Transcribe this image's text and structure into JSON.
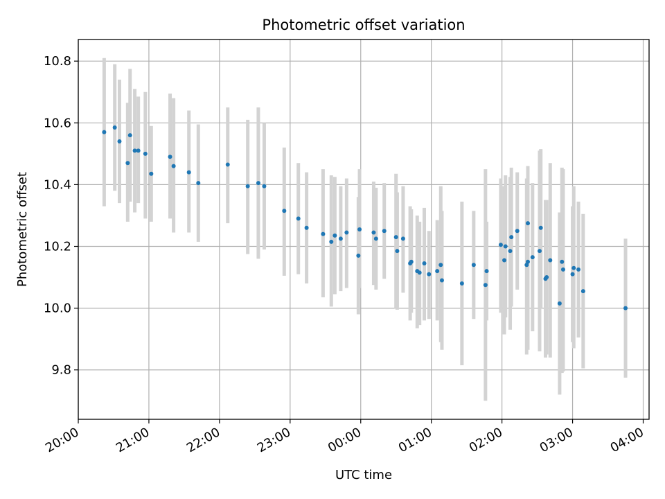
{
  "chart_data": {
    "type": "scatter",
    "title": "Photometric offset variation",
    "xlabel": "UTC time",
    "ylabel": "Photometric offset",
    "xlim": [
      "20:00",
      "04:05"
    ],
    "ylim": [
      9.64,
      10.87
    ],
    "x_ticks": [
      "20:00",
      "21:00",
      "22:00",
      "23:00",
      "00:00",
      "01:00",
      "02:00",
      "03:00",
      "04:00"
    ],
    "y_ticks": [
      "9.8",
      "10.0",
      "10.2",
      "10.4",
      "10.6",
      "10.8"
    ],
    "grid": true,
    "error_bars": true,
    "colors": {
      "points": "#1f77b4",
      "error_bars": "#d3d3d3",
      "grid": "#b0b0b0"
    },
    "points": [
      {
        "x": "20:22",
        "y": 10.57,
        "lo": 10.33,
        "hi": 10.81
      },
      {
        "x": "20:31",
        "y": 10.585,
        "lo": 10.38,
        "hi": 10.79
      },
      {
        "x": "20:35",
        "y": 10.54,
        "lo": 10.34,
        "hi": 10.74
      },
      {
        "x": "20:42",
        "y": 10.47,
        "lo": 10.28,
        "hi": 10.665
      },
      {
        "x": "20:44",
        "y": 10.56,
        "lo": 10.345,
        "hi": 10.775
      },
      {
        "x": "20:48",
        "y": 10.51,
        "lo": 10.31,
        "hi": 10.71
      },
      {
        "x": "20:51",
        "y": 10.51,
        "lo": 10.34,
        "hi": 10.685
      },
      {
        "x": "20:57",
        "y": 10.5,
        "lo": 10.29,
        "hi": 10.7
      },
      {
        "x": "21:02",
        "y": 10.435,
        "lo": 10.28,
        "hi": 10.59
      },
      {
        "x": "21:18",
        "y": 10.49,
        "lo": 10.29,
        "hi": 10.695
      },
      {
        "x": "21:21",
        "y": 10.46,
        "lo": 10.245,
        "hi": 10.68
      },
      {
        "x": "21:34",
        "y": 10.44,
        "lo": 10.245,
        "hi": 10.64
      },
      {
        "x": "21:42",
        "y": 10.405,
        "lo": 10.215,
        "hi": 10.595
      },
      {
        "x": "22:07",
        "y": 10.465,
        "lo": 10.275,
        "hi": 10.65
      },
      {
        "x": "22:24",
        "y": 10.395,
        "lo": 10.175,
        "hi": 10.61
      },
      {
        "x": "22:33",
        "y": 10.405,
        "lo": 10.16,
        "hi": 10.65
      },
      {
        "x": "22:38",
        "y": 10.395,
        "lo": 10.19,
        "hi": 10.6
      },
      {
        "x": "22:55",
        "y": 10.315,
        "lo": 10.105,
        "hi": 10.52
      },
      {
        "x": "23:07",
        "y": 10.29,
        "lo": 10.11,
        "hi": 10.47
      },
      {
        "x": "23:14",
        "y": 10.26,
        "lo": 10.08,
        "hi": 10.44
      },
      {
        "x": "23:28",
        "y": 10.24,
        "lo": 10.035,
        "hi": 10.45
      },
      {
        "x": "23:35",
        "y": 10.215,
        "lo": 10.005,
        "hi": 10.43
      },
      {
        "x": "23:38",
        "y": 10.235,
        "lo": 10.045,
        "hi": 10.425
      },
      {
        "x": "23:43",
        "y": 10.225,
        "lo": 10.055,
        "hi": 10.395
      },
      {
        "x": "23:48",
        "y": 10.245,
        "lo": 10.065,
        "hi": 10.42
      },
      {
        "x": "23:58",
        "y": 10.17,
        "lo": 9.98,
        "hi": 10.36
      },
      {
        "x": "23:59",
        "y": 10.255,
        "lo": 10.065,
        "hi": 10.45
      },
      {
        "x": "00:11",
        "y": 10.245,
        "lo": 10.075,
        "hi": 10.41
      },
      {
        "x": "00:13",
        "y": 10.225,
        "lo": 10.06,
        "hi": 10.39
      },
      {
        "x": "00:20",
        "y": 10.25,
        "lo": 10.095,
        "hi": 10.405
      },
      {
        "x": "00:30",
        "y": 10.23,
        "lo": 10.0,
        "hi": 10.435
      },
      {
        "x": "00:31",
        "y": 10.185,
        "lo": 9.995,
        "hi": 10.375
      },
      {
        "x": "00:36",
        "y": 10.225,
        "lo": 10.05,
        "hi": 10.395
      },
      {
        "x": "00:42",
        "y": 10.145,
        "lo": 9.96,
        "hi": 10.33
      },
      {
        "x": "00:43",
        "y": 10.15,
        "lo": 9.985,
        "hi": 10.32
      },
      {
        "x": "00:48",
        "y": 10.12,
        "lo": 9.935,
        "hi": 10.3
      },
      {
        "x": "00:50",
        "y": 10.115,
        "lo": 9.945,
        "hi": 10.28
      },
      {
        "x": "00:54",
        "y": 10.145,
        "lo": 9.96,
        "hi": 10.325
      },
      {
        "x": "00:58",
        "y": 10.11,
        "lo": 9.965,
        "hi": 10.25
      },
      {
        "x": "01:05",
        "y": 10.12,
        "lo": 9.96,
        "hi": 10.285
      },
      {
        "x": "01:08",
        "y": 10.14,
        "lo": 9.89,
        "hi": 10.395
      },
      {
        "x": "01:09",
        "y": 10.09,
        "lo": 9.865,
        "hi": 10.315
      },
      {
        "x": "01:26",
        "y": 10.08,
        "lo": 9.815,
        "hi": 10.345
      },
      {
        "x": "01:36",
        "y": 10.14,
        "lo": 9.965,
        "hi": 10.315
      },
      {
        "x": "01:46",
        "y": 10.075,
        "lo": 9.7,
        "hi": 10.45
      },
      {
        "x": "01:47",
        "y": 10.12,
        "lo": 9.96,
        "hi": 10.28
      },
      {
        "x": "01:59",
        "y": 10.205,
        "lo": 9.985,
        "hi": 10.42
      },
      {
        "x": "02:02",
        "y": 10.155,
        "lo": 9.915,
        "hi": 10.395
      },
      {
        "x": "02:03",
        "y": 10.2,
        "lo": 9.97,
        "hi": 10.43
      },
      {
        "x": "02:07",
        "y": 10.185,
        "lo": 9.93,
        "hi": 10.425
      },
      {
        "x": "02:08",
        "y": 10.23,
        "lo": 10.005,
        "hi": 10.455
      },
      {
        "x": "02:13",
        "y": 10.25,
        "lo": 10.06,
        "hi": 10.44
      },
      {
        "x": "02:21",
        "y": 10.14,
        "lo": 9.85,
        "hi": 10.42
      },
      {
        "x": "02:22",
        "y": 10.15,
        "lo": 9.865,
        "hi": 10.435
      },
      {
        "x": "02:22",
        "y": 10.275,
        "lo": 10.09,
        "hi": 10.46
      },
      {
        "x": "02:26",
        "y": 10.165,
        "lo": 9.925,
        "hi": 10.405
      },
      {
        "x": "02:32",
        "y": 10.185,
        "lo": 9.86,
        "hi": 10.51
      },
      {
        "x": "02:33",
        "y": 10.26,
        "lo": 10.0,
        "hi": 10.515
      },
      {
        "x": "02:37",
        "y": 10.095,
        "lo": 9.84,
        "hi": 10.35
      },
      {
        "x": "02:38",
        "y": 10.1,
        "lo": 9.85,
        "hi": 10.35
      },
      {
        "x": "02:41",
        "y": 10.155,
        "lo": 9.84,
        "hi": 10.47
      },
      {
        "x": "02:49",
        "y": 10.015,
        "lo": 9.72,
        "hi": 10.31
      },
      {
        "x": "02:51",
        "y": 10.15,
        "lo": 9.79,
        "hi": 10.455
      },
      {
        "x": "02:52",
        "y": 10.125,
        "lo": 9.795,
        "hi": 10.45
      },
      {
        "x": "03:00",
        "y": 10.11,
        "lo": 9.89,
        "hi": 10.33
      },
      {
        "x": "03:01",
        "y": 10.13,
        "lo": 9.87,
        "hi": 10.395
      },
      {
        "x": "03:05",
        "y": 10.125,
        "lo": 9.905,
        "hi": 10.345
      },
      {
        "x": "03:09",
        "y": 10.055,
        "lo": 9.805,
        "hi": 10.305
      },
      {
        "x": "03:45",
        "y": 10.0,
        "lo": 9.775,
        "hi": 10.225
      }
    ]
  }
}
